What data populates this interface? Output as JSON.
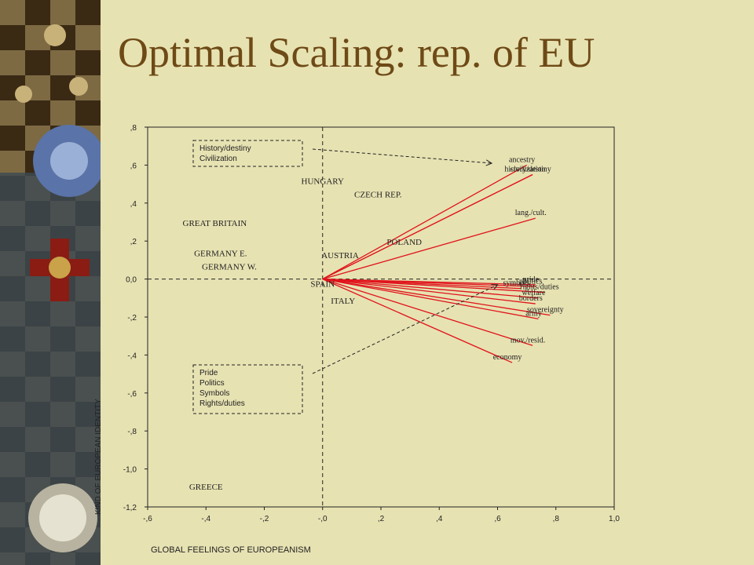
{
  "slide": {
    "title": "Optimal Scaling: rep. of EU"
  },
  "decoration": {
    "description_icon": "ornament-cross-medal-compass-icon"
  },
  "chart_data": {
    "type": "scatter",
    "title": "Optimal Scaling: rep. of EU",
    "xlabel": "GLOBAL FEELINGS OF EUROPEANISM",
    "ylabel": "KIND OF EUROPEAN IDENTITY",
    "xlim": [
      -0.6,
      1.0
    ],
    "ylim": [
      -1.2,
      0.8
    ],
    "grid": false,
    "legend": "none",
    "xticks": [
      {
        "v": -0.6,
        "label": "-,6"
      },
      {
        "v": -0.4,
        "label": "-,4"
      },
      {
        "v": -0.2,
        "label": "-,2"
      },
      {
        "v": 0.0,
        "label": "-,0"
      },
      {
        "v": 0.2,
        "label": ",2"
      },
      {
        "v": 0.4,
        "label": ",4"
      },
      {
        "v": 0.6,
        "label": ",6"
      },
      {
        "v": 0.8,
        "label": ",8"
      },
      {
        "v": 1.0,
        "label": "1,0"
      }
    ],
    "yticks": [
      {
        "v": 0.8,
        "label": ",8"
      },
      {
        "v": 0.6,
        "label": ",6"
      },
      {
        "v": 0.4,
        "label": ",4"
      },
      {
        "v": 0.2,
        "label": ",2"
      },
      {
        "v": 0.0,
        "label": "0,0"
      },
      {
        "v": -0.2,
        "label": "-,2"
      },
      {
        "v": -0.4,
        "label": "-,4"
      },
      {
        "v": -0.6,
        "label": "-,6"
      },
      {
        "v": -0.8,
        "label": "-,8"
      },
      {
        "v": -1.0,
        "label": "-1,0"
      },
      {
        "v": -1.2,
        "label": "-1,2"
      }
    ],
    "reference_lines": {
      "x": 0.0,
      "y": 0.0
    },
    "countries": [
      {
        "name": "HUNGARY",
        "x": 0.0,
        "y": 0.5
      },
      {
        "name": "CZECH REP.",
        "x": 0.19,
        "y": 0.43
      },
      {
        "name": "GREAT BRITAIN",
        "x": -0.37,
        "y": 0.28
      },
      {
        "name": "POLAND",
        "x": 0.28,
        "y": 0.18
      },
      {
        "name": "GERMANY E.",
        "x": -0.35,
        "y": 0.12
      },
      {
        "name": "AUSTRIA",
        "x": 0.06,
        "y": 0.11
      },
      {
        "name": "GERMANY W.",
        "x": -0.32,
        "y": 0.05
      },
      {
        "name": "SPAIN",
        "x": 0.0,
        "y": -0.04
      },
      {
        "name": "ITALY",
        "x": 0.07,
        "y": -0.13
      },
      {
        "name": "GREECE",
        "x": -0.4,
        "y": -1.11
      }
    ],
    "origin": [
      0.0,
      0.0
    ],
    "vectors": [
      {
        "name": "ancestry",
        "x": 0.7,
        "y": 0.6
      },
      {
        "name": "history/destiny",
        "x": 0.72,
        "y": 0.55
      },
      {
        "name": "civilization",
        "x": 0.72,
        "y": 0.55
      },
      {
        "name": "lang./cult.",
        "x": 0.73,
        "y": 0.32
      },
      {
        "name": "pride",
        "x": 0.73,
        "y": -0.03
      },
      {
        "name": "politics",
        "x": 0.73,
        "y": -0.04
      },
      {
        "name": "symbols",
        "x": 0.68,
        "y": -0.05
      },
      {
        "name": "rights/duties",
        "x": 0.76,
        "y": -0.07
      },
      {
        "name": "welfare",
        "x": 0.74,
        "y": -0.1
      },
      {
        "name": "borders",
        "x": 0.73,
        "y": -0.13
      },
      {
        "name": "sovereignty",
        "x": 0.78,
        "y": -0.19
      },
      {
        "name": "army",
        "x": 0.74,
        "y": -0.21
      },
      {
        "name": "mov./resid.",
        "x": 0.72,
        "y": -0.35
      },
      {
        "name": "economy",
        "x": 0.65,
        "y": -0.44
      }
    ],
    "groups": [
      {
        "lines": [
          "History/destiny",
          "Civilization"
        ],
        "target": [
          0.58,
          0.61
        ]
      },
      {
        "lines": [
          "Pride",
          "Politics",
          "Symbols",
          "Rights/duties"
        ],
        "target": [
          0.6,
          -0.03
        ]
      }
    ]
  }
}
